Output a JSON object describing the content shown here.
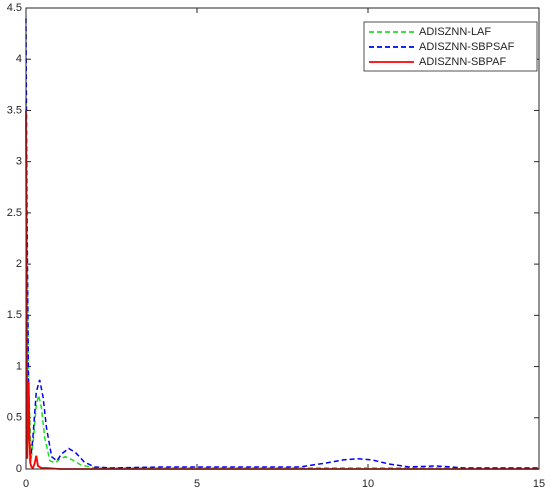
{
  "chart_data": {
    "type": "line",
    "xlim": [
      0,
      15
    ],
    "xticks": [
      0,
      5,
      10,
      15
    ],
    "ylim": [
      0,
      4.5
    ],
    "yticks": [
      0,
      0.5,
      1,
      1.5,
      2,
      2.5,
      3,
      3.5,
      4,
      4.5
    ],
    "legend": "top-right",
    "box": true,
    "series": [
      {
        "name": "ADISZNN-LAF",
        "color": "#22dd22",
        "line_style": "dashed",
        "x": [
          0,
          0.03,
          0.08,
          0.15,
          0.22,
          0.3,
          0.37,
          0.45,
          0.55,
          0.7,
          0.85,
          1.0,
          1.15,
          1.35,
          1.6,
          2.0,
          3,
          5,
          8,
          10,
          12,
          15
        ],
        "values": [
          3.6,
          2.2,
          0.8,
          0.1,
          0.3,
          0.62,
          0.72,
          0.6,
          0.3,
          0.08,
          0.06,
          0.1,
          0.12,
          0.09,
          0.04,
          0.01,
          0.01,
          0.01,
          0.01,
          0.01,
          0.01,
          0.01
        ]
      },
      {
        "name": "ADISZNN-SBPSAF",
        "color": "#0000ff",
        "line_style": "dashed",
        "x": [
          0,
          0.03,
          0.07,
          0.12,
          0.2,
          0.3,
          0.4,
          0.5,
          0.6,
          0.75,
          0.9,
          1.05,
          1.25,
          1.45,
          1.7,
          2.0,
          2.5,
          4,
          6,
          8,
          8.8,
          9.3,
          9.7,
          10.1,
          10.6,
          11.2,
          12,
          12.8,
          14,
          15
        ],
        "values": [
          4.4,
          2.5,
          0.9,
          0.05,
          0.3,
          0.75,
          0.87,
          0.7,
          0.4,
          0.12,
          0.08,
          0.15,
          0.2,
          0.16,
          0.07,
          0.02,
          0.01,
          0.02,
          0.02,
          0.02,
          0.06,
          0.09,
          0.1,
          0.09,
          0.05,
          0.02,
          0.03,
          0.01,
          0.01,
          0.01
        ]
      },
      {
        "name": "ADISZNN-SBPAF",
        "color": "#ff0000",
        "line_style": "solid",
        "x": [
          0,
          0.02,
          0.04,
          0.06,
          0.08,
          0.1,
          0.13,
          0.16,
          0.2,
          0.25,
          0.3,
          0.35,
          0.45,
          0.6,
          1,
          15
        ],
        "values": [
          3.5,
          1.5,
          0.1,
          0.6,
          0.85,
          0.3,
          0.05,
          0.02,
          0.01,
          0.05,
          0.13,
          0.03,
          0.01,
          0.01,
          0,
          0
        ]
      }
    ]
  }
}
